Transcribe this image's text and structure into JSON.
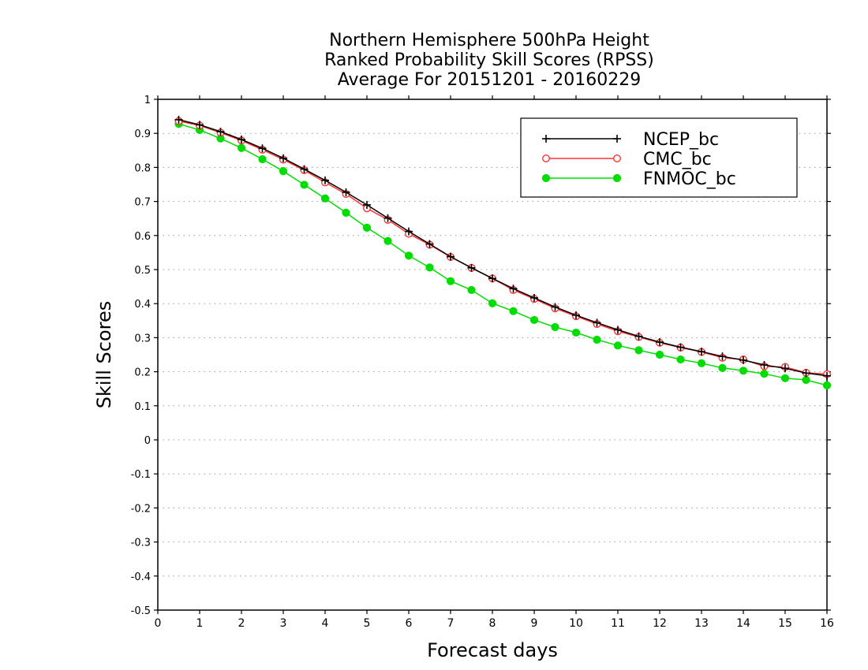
{
  "chart_data": {
    "type": "line",
    "title_lines": [
      "Northern Hemisphere 500hPa Height",
      "Ranked Probability Skill Scores (RPSS)",
      "Average For 20151201 - 20160229"
    ],
    "xlabel": "Forecast days",
    "ylabel": "Skill Scores",
    "xlim": [
      0,
      16
    ],
    "ylim": [
      -0.5,
      1
    ],
    "x_ticks": [
      "0",
      "1",
      "2",
      "3",
      "4",
      "5",
      "6",
      "7",
      "8",
      "9",
      "10",
      "11",
      "12",
      "13",
      "14",
      "15",
      "16"
    ],
    "y_ticks": [
      "1",
      "0.9",
      "0.8",
      "0.7",
      "0.6",
      "0.5",
      "0.4",
      "0.3",
      "0.2",
      "0.1",
      "0",
      "-0.1",
      "-0.2",
      "-0.3",
      "-0.4",
      "-0.5"
    ],
    "grid": "horizontal-dotted",
    "legend_position": "top-right",
    "x": [
      0.5,
      1,
      1.5,
      2,
      2.5,
      3,
      3.5,
      4,
      4.5,
      5,
      5.5,
      6,
      6.5,
      7,
      7.5,
      8,
      8.5,
      9,
      9.5,
      10,
      10.5,
      11,
      11.5,
      12,
      12.5,
      13,
      13.5,
      14,
      14.5,
      15,
      15.5,
      16
    ],
    "series": [
      {
        "name": "NCEP_bc",
        "color": "#000000",
        "marker": "plus",
        "values": [
          0.94,
          0.925,
          0.905,
          0.882,
          0.856,
          0.827,
          0.795,
          0.762,
          0.727,
          0.69,
          0.651,
          0.612,
          0.575,
          0.538,
          0.505,
          0.474,
          0.444,
          0.417,
          0.39,
          0.366,
          0.344,
          0.323,
          0.304,
          0.287,
          0.272,
          0.259,
          0.245,
          0.234,
          0.22,
          0.21,
          0.196,
          0.188
        ]
      },
      {
        "name": "CMC_bc",
        "color": "#ff3333",
        "marker": "open-circle",
        "values": [
          0.936,
          0.923,
          0.902,
          0.879,
          0.852,
          0.823,
          0.792,
          0.756,
          0.722,
          0.68,
          0.646,
          0.605,
          0.573,
          0.537,
          0.505,
          0.474,
          0.44,
          0.414,
          0.386,
          0.363,
          0.34,
          0.319,
          0.302,
          0.285,
          0.271,
          0.258,
          0.241,
          0.236,
          0.216,
          0.214,
          0.197,
          0.193
        ]
      },
      {
        "name": "FNMOC_bc",
        "color": "#00dd00",
        "marker": "filled-circle",
        "values": [
          0.928,
          0.91,
          0.885,
          0.857,
          0.824,
          0.789,
          0.749,
          0.709,
          0.667,
          0.623,
          0.584,
          0.541,
          0.506,
          0.466,
          0.44,
          0.401,
          0.378,
          0.352,
          0.331,
          0.315,
          0.294,
          0.277,
          0.263,
          0.25,
          0.236,
          0.225,
          0.211,
          0.203,
          0.194,
          0.181,
          0.176,
          0.16
        ]
      }
    ]
  }
}
